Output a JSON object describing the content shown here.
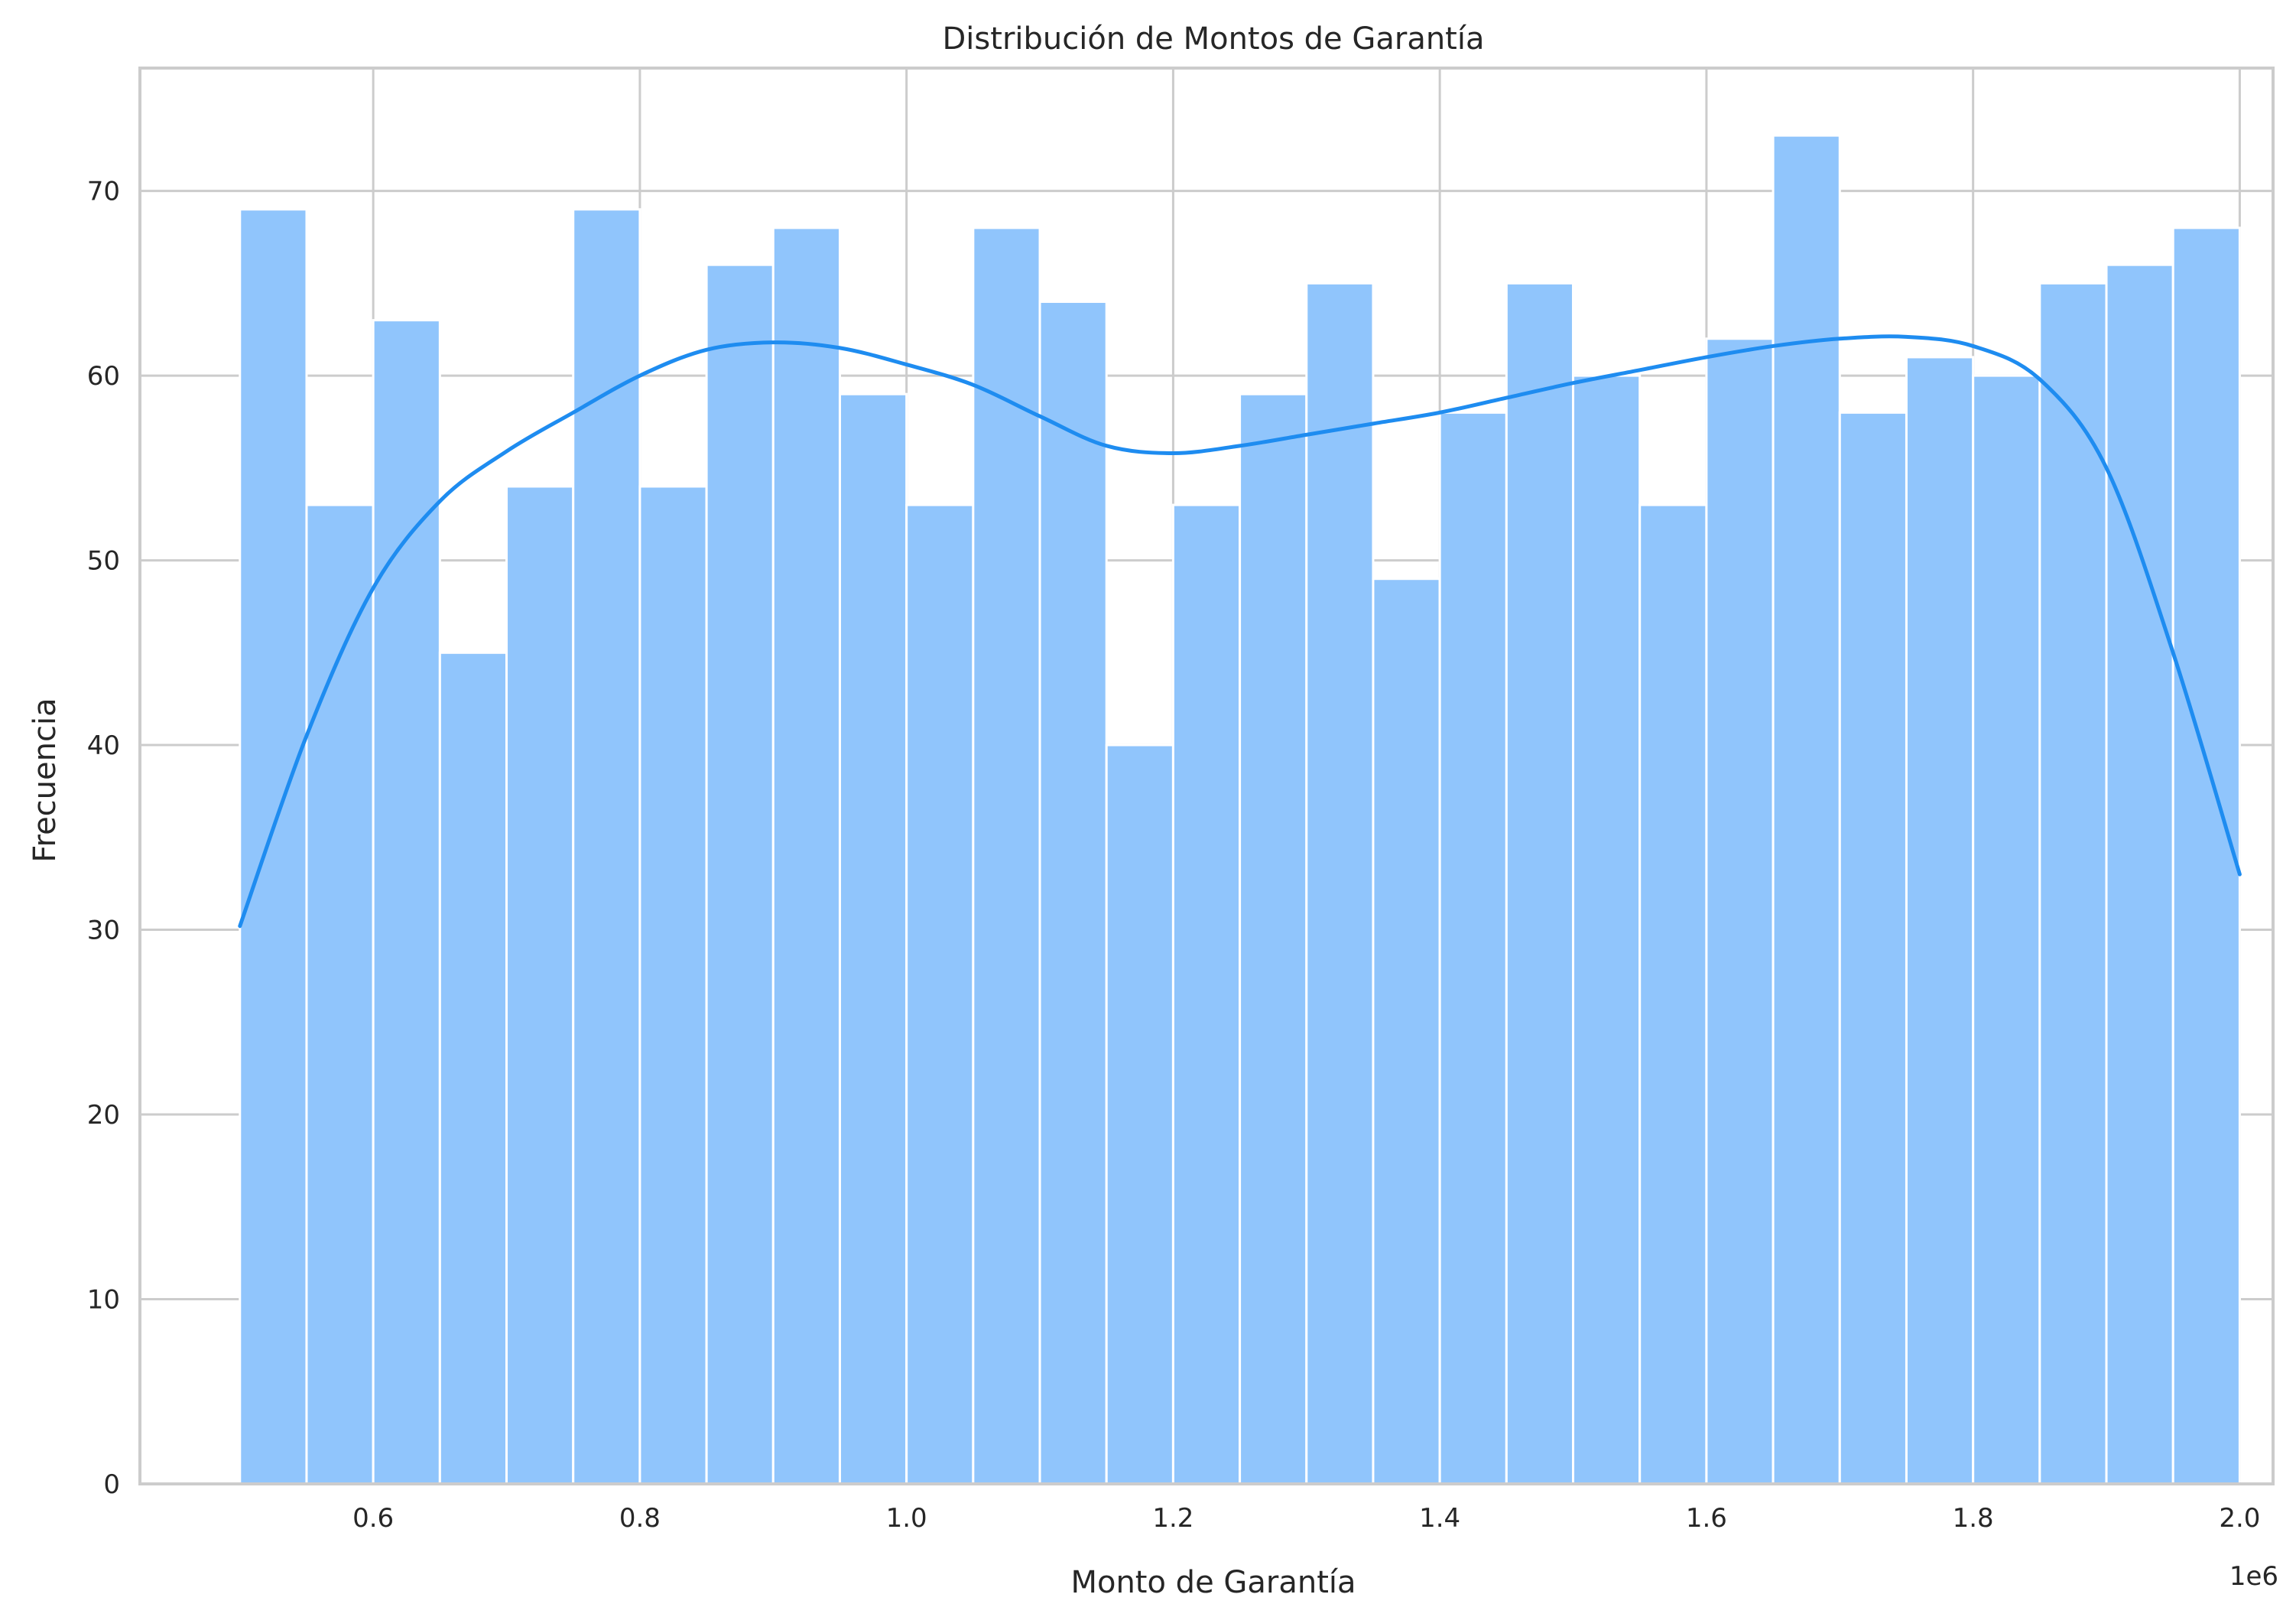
{
  "chart_data": {
    "type": "bar",
    "subtype": "histogram",
    "title": "Distribución de Montos de Garantía",
    "xlabel": "Monto de Garantía",
    "ylabel": "Frecuencia",
    "x_offset_text": "1e6",
    "x_tick_values": [
      0.6,
      0.8,
      1.0,
      1.2,
      1.4,
      1.6,
      1.8,
      2.0
    ],
    "x_tick_labels": [
      "0.6",
      "0.8",
      "1.0",
      "1.2",
      "1.4",
      "1.6",
      "1.8",
      "2.0"
    ],
    "y_tick_values": [
      0,
      10,
      20,
      30,
      40,
      50,
      60,
      70
    ],
    "y_tick_labels": [
      "0",
      "10",
      "20",
      "30",
      "40",
      "50",
      "60",
      "70"
    ],
    "xlim": [
      0.425,
      2.025
    ],
    "ylim": [
      0,
      76.65
    ],
    "bin_start": 0.5,
    "bin_end": 2.0,
    "values": [
      69,
      53,
      63,
      45,
      54,
      69,
      54,
      66,
      68,
      59,
      53,
      68,
      64,
      40,
      53,
      59,
      65,
      49,
      58,
      65,
      60,
      53,
      62,
      73,
      58,
      61,
      60,
      65,
      66,
      68
    ],
    "kde": {
      "x": [
        0.5,
        0.55,
        0.6,
        0.65,
        0.7,
        0.75,
        0.8,
        0.85,
        0.9,
        0.95,
        1.0,
        1.05,
        1.1,
        1.15,
        1.2,
        1.25,
        1.3,
        1.35,
        1.4,
        1.45,
        1.5,
        1.55,
        1.6,
        1.65,
        1.7,
        1.75,
        1.8,
        1.85,
        1.9,
        1.95,
        2.0
      ],
      "y": [
        30.2,
        40.5,
        48.5,
        53.2,
        55.9,
        58.0,
        60.0,
        61.4,
        61.8,
        61.5,
        60.6,
        59.5,
        57.8,
        56.2,
        55.8,
        56.2,
        56.8,
        57.4,
        58.0,
        58.8,
        59.6,
        60.3,
        61.0,
        61.6,
        62.0,
        62.1,
        61.6,
        59.8,
        55.0,
        45.0,
        33.0
      ]
    },
    "grid": true,
    "colors": {
      "bars": "#90c5fc",
      "kde": "#1e8cf0",
      "grid": "#cccccc"
    }
  }
}
